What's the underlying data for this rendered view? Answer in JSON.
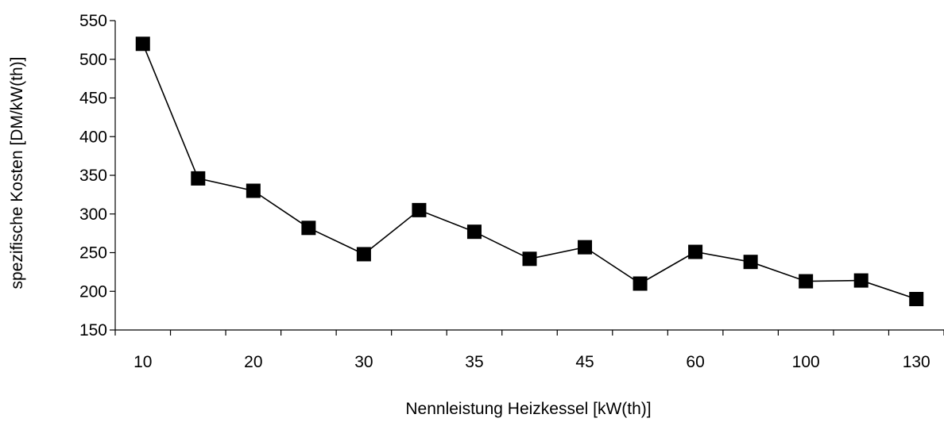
{
  "chart_data": {
    "type": "line",
    "title": "",
    "xlabel": "Nennleistung Heizkessel [kW(th)]",
    "ylabel": "spezifische Kosten [DM/kW(th)]",
    "x_tick_labels": [
      "10",
      "20",
      "30",
      "35",
      "45",
      "60",
      "100",
      "130"
    ],
    "y_ticks": [
      150,
      200,
      250,
      300,
      350,
      400,
      450,
      500,
      550
    ],
    "ylim": [
      150,
      550
    ],
    "grid": false,
    "legend": "none",
    "marker": "square",
    "color": "#000000",
    "series": [
      {
        "values": [
          520,
          346,
          330,
          282,
          248,
          305,
          277,
          242,
          257,
          210,
          251,
          238,
          213,
          214,
          190
        ]
      }
    ]
  }
}
